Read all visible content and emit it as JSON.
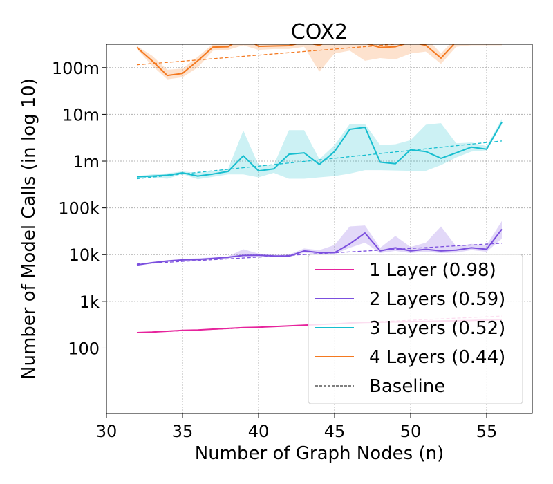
{
  "chart_data": {
    "type": "line",
    "title": "COX2",
    "xlabel": "Number of Graph Nodes (n)",
    "ylabel": "Number of Model Calls (in log 10)",
    "x_ticks": [
      30,
      35,
      40,
      45,
      50,
      55
    ],
    "xlim": [
      30,
      58
    ],
    "y_scale": "log10",
    "ylim": [
      4,
      316000000
    ],
    "y_ticks": [
      {
        "value": 100,
        "label": "100"
      },
      {
        "value": 1000,
        "label": "1k"
      },
      {
        "value": 10000,
        "label": "10k"
      },
      {
        "value": 100000,
        "label": "100k"
      },
      {
        "value": 1000000,
        "label": "1m"
      },
      {
        "value": 10000000,
        "label": "10m"
      },
      {
        "value": 100000000,
        "label": "100m"
      }
    ],
    "grid": true,
    "legend_position": "lower-right",
    "baseline_label": "Baseline",
    "series": [
      {
        "name": "1 Layer (0.98)",
        "color": "#e6239c",
        "x": [
          32,
          33,
          34,
          35,
          36,
          37,
          38,
          39,
          40,
          41,
          42,
          43,
          44,
          45,
          46,
          47,
          48,
          49,
          50,
          51,
          52,
          53,
          54,
          55,
          56
        ],
        "y": [
          215,
          220,
          230,
          240,
          245,
          255,
          265,
          275,
          280,
          290,
          300,
          310,
          320,
          330,
          345,
          355,
          360,
          365,
          370,
          375,
          380,
          385,
          390,
          400,
          410
        ],
        "lower": [
          210,
          215,
          225,
          235,
          240,
          250,
          258,
          268,
          274,
          283,
          293,
          303,
          313,
          323,
          335,
          343,
          349,
          354,
          358,
          362,
          367,
          372,
          378,
          388,
          398
        ],
        "upper": [
          220,
          226,
          236,
          246,
          251,
          261,
          272,
          283,
          288,
          298,
          308,
          318,
          328,
          338,
          355,
          368,
          372,
          377,
          383,
          388,
          394,
          399,
          404,
          413,
          424
        ],
        "baseline": [
          213,
          485
        ]
      },
      {
        "name": "2 Layers (0.59)",
        "color": "#7b4fde",
        "x": [
          32,
          33,
          34,
          35,
          36,
          37,
          38,
          39,
          40,
          41,
          42,
          43,
          44,
          45,
          46,
          47,
          48,
          49,
          50,
          51,
          52,
          53,
          54,
          55,
          56
        ],
        "y": [
          6000,
          6700,
          7300,
          7700,
          7900,
          8300,
          8800,
          9600,
          9700,
          9400,
          9300,
          12000,
          11000,
          11000,
          17000,
          29000,
          12000,
          14000,
          12000,
          13000,
          12000,
          12500,
          14000,
          13000,
          35000
        ],
        "lower": [
          5800,
          6400,
          7000,
          7400,
          7400,
          7900,
          8400,
          9000,
          9200,
          8900,
          8800,
          11000,
          10200,
          10200,
          14000,
          18000,
          10800,
          12000,
          10800,
          11500,
          10800,
          11000,
          12500,
          11500,
          22000
        ],
        "upper": [
          6200,
          7000,
          7600,
          8000,
          8400,
          8700,
          9200,
          13000,
          10500,
          10000,
          10000,
          13500,
          12500,
          16000,
          40000,
          42000,
          14000,
          25000,
          14500,
          18000,
          40000,
          15000,
          17000,
          16000,
          52000
        ],
        "baseline": [
          6300,
          17500
        ]
      },
      {
        "name": "3 Layers (0.52)",
        "color": "#17becf",
        "x": [
          32,
          33,
          34,
          35,
          36,
          37,
          38,
          39,
          40,
          41,
          42,
          43,
          44,
          45,
          46,
          47,
          48,
          49,
          50,
          51,
          52,
          53,
          54,
          55,
          56
        ],
        "y": [
          460000,
          480000,
          500000,
          560000,
          480000,
          530000,
          600000,
          1300000,
          620000,
          680000,
          1400000,
          1500000,
          850000,
          1600000,
          4800000,
          5300000,
          950000,
          880000,
          1750000,
          1600000,
          1150000,
          1500000,
          2000000,
          1800000,
          6800000
        ],
        "lower": [
          440000,
          450000,
          420000,
          530000,
          410000,
          460000,
          520000,
          520000,
          450000,
          560000,
          420000,
          420000,
          450000,
          480000,
          540000,
          640000,
          640000,
          630000,
          620000,
          620000,
          820000,
          1200000,
          1600000,
          1700000,
          6000000
        ],
        "upper": [
          480000,
          520000,
          550000,
          600000,
          560000,
          610000,
          680000,
          4500000,
          820000,
          820000,
          4600000,
          4600000,
          1100000,
          2200000,
          6200000,
          6200000,
          2200000,
          2300000,
          2800000,
          6000000,
          6500000,
          2400000,
          2500000,
          2100000,
          8000000
        ],
        "baseline": [
          420000,
          2700000
        ]
      },
      {
        "name": "4 Layers (0.44)",
        "color": "#f47920",
        "x": [
          32,
          33,
          34,
          35,
          36,
          37,
          38,
          39,
          40,
          41,
          42,
          43,
          44,
          45,
          46,
          47,
          48,
          49,
          50,
          51,
          52,
          53,
          54,
          55,
          56
        ],
        "y": [
          270000000,
          140000000,
          68000000,
          75000000,
          140000000,
          275000000,
          280000000,
          450000000,
          285000000,
          290000000,
          295000000,
          350000000,
          300000000,
          420000000,
          380000000,
          330000000,
          270000000,
          280000000,
          350000000,
          300000000,
          160000000,
          360000000,
          400000000,
          380000000,
          420000000
        ],
        "lower": [
          250000000,
          110000000,
          56000000,
          62000000,
          100000000,
          230000000,
          240000000,
          300000000,
          240000000,
          250000000,
          250000000,
          280000000,
          82000000,
          200000000,
          230000000,
          140000000,
          160000000,
          150000000,
          200000000,
          220000000,
          120000000,
          280000000,
          300000000,
          300000000,
          300000000
        ],
        "upper": [
          290000000,
          180000000,
          90000000,
          95000000,
          170000000,
          320000000,
          330000000,
          600000000,
          330000000,
          330000000,
          340000000,
          450000000,
          500000000,
          600000000,
          600000000,
          700000000,
          320000000,
          320000000,
          600000000,
          450000000,
          200000000,
          450000000,
          500000000,
          500000000,
          600000000
        ],
        "baseline": [
          115000000,
          480000000
        ]
      }
    ]
  }
}
